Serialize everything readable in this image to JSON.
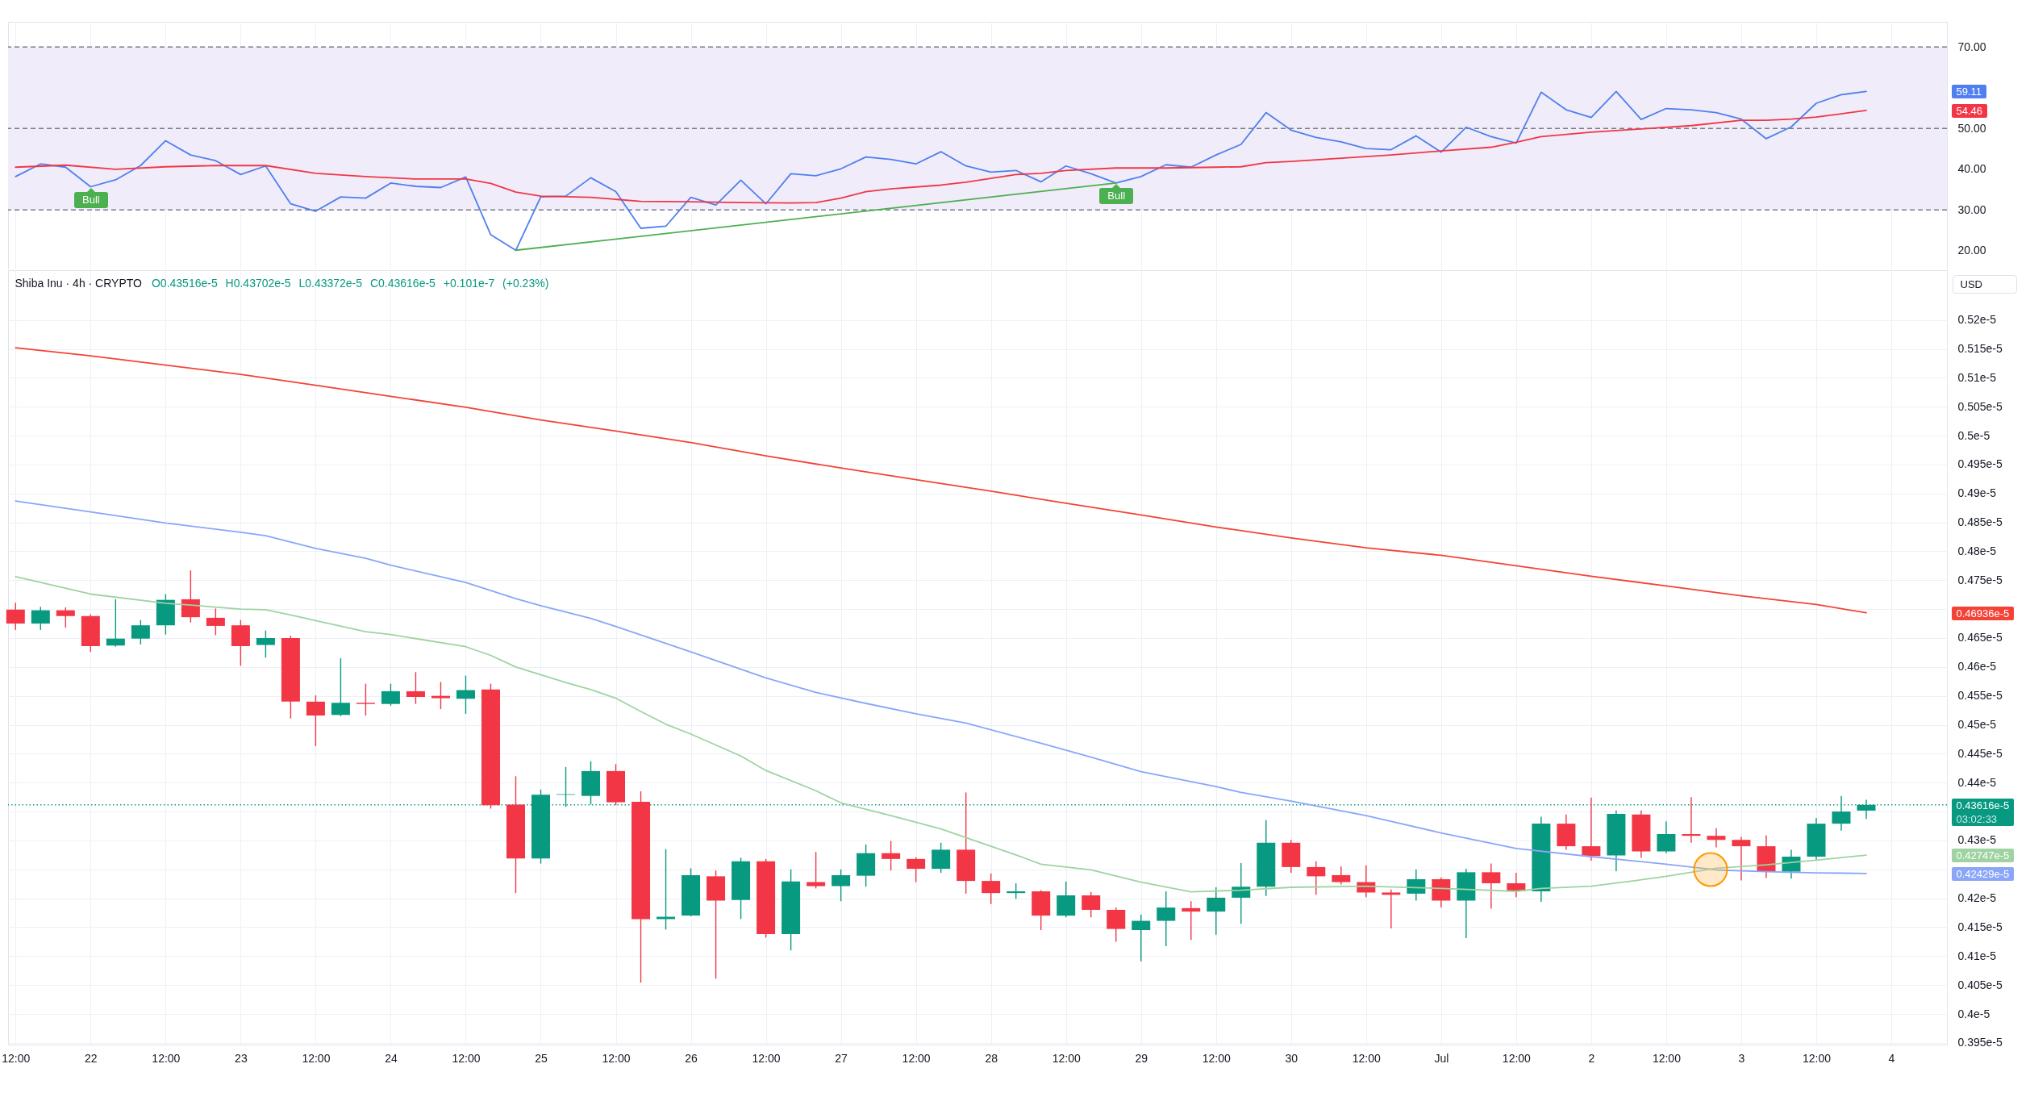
{
  "chart_data": [
    {
      "type": "line",
      "x": [
        "--06-21T12:00",
        "--06-21T16:00",
        "--06-21T20:00",
        "--06-22T00:00",
        "--06-22T04:00",
        "--06-22T08:00",
        "--06-22T12:00",
        "--06-22T16:00",
        "--06-22T20:00",
        "--06-23T00:00",
        "--06-23T04:00",
        "--06-23T08:00",
        "--06-23T12:00",
        "--06-23T16:00",
        "--06-23T20:00",
        "--06-24T00:00",
        "--06-24T04:00",
        "--06-24T08:00",
        "--06-24T12:00",
        "--06-24T16:00",
        "--06-24T20:00",
        "--06-25T00:00",
        "--06-25T04:00",
        "--06-25T08:00",
        "--06-25T12:00",
        "--06-25T16:00",
        "--06-25T20:00",
        "--06-26T00:00",
        "--06-26T04:00",
        "--06-26T08:00",
        "--06-26T12:00",
        "--06-26T16:00",
        "--06-26T20:00",
        "--06-27T00:00",
        "--06-27T04:00",
        "--06-27T08:00",
        "--06-27T12:00",
        "--06-27T16:00",
        "--06-27T20:00",
        "--06-28T00:00",
        "--06-28T04:00",
        "--06-28T08:00",
        "--06-28T12:00",
        "--06-28T16:00",
        "--06-28T20:00",
        "--06-29T00:00",
        "--06-29T04:00",
        "--06-29T08:00",
        "--06-29T12:00",
        "--06-29T16:00",
        "--06-29T20:00",
        "--06-30T00:00",
        "--06-30T04:00",
        "--06-30T08:00",
        "--06-30T12:00",
        "--06-30T16:00",
        "--06-30T20:00",
        "--07-01T00:00",
        "--07-01T04:00",
        "--07-01T08:00",
        "--07-01T12:00",
        "--07-01T16:00",
        "--07-01T20:00",
        "--07-02T00:00",
        "--07-02T04:00",
        "--07-02T08:00",
        "--07-02T12:00",
        "--07-02T16:00",
        "--07-02T20:00",
        "--07-03T00:00",
        "--07-03T04:00",
        "--07-03T08:00",
        "--07-03T12:00",
        "--07-03T16:00",
        "--07-03T20:00"
      ],
      "series": [
        {
          "color": "#4f7ff0",
          "values": [
            38.2,
            41.3,
            40.5,
            35.7,
            37.4,
            40.9,
            47.0,
            43.5,
            42.1,
            38.7,
            40.8,
            31.5,
            29.7,
            33.2,
            32.9,
            36.6,
            35.8,
            35.5,
            38.1,
            23.9,
            20.1,
            33.2,
            33.4,
            37.9,
            34.5,
            25.5,
            26.0,
            33.1,
            31.2,
            37.3,
            31.5,
            38.9,
            38.4,
            40.1,
            43.0,
            42.4,
            41.3,
            44.3,
            40.8,
            39.3,
            39.7,
            36.9,
            40.8,
            38.9,
            36.6,
            38.2,
            41.1,
            40.5,
            43.5,
            46.1,
            53.9,
            49.6,
            47.8,
            46.7,
            45.1,
            44.8,
            48.2,
            44.2,
            50.3,
            48.0,
            46.4,
            58.9,
            54.6,
            52.7,
            59.1,
            52.2,
            54.9,
            54.6,
            53.9,
            52.3,
            47.5,
            50.4,
            56.2,
            58.3,
            59.11
          ]
        },
        {
          "color": "#f23645",
          "x": [
            "--06-21T12:00",
            "--06-21T20:00",
            "--06-22T04:00",
            "--06-22T12:00",
            "--06-22T20:00",
            "--06-23T04:00",
            "--06-23T12:00",
            "--06-23T20:00",
            "--06-24T04:00",
            "--06-24T12:00",
            "--06-24T16:00",
            "--06-24T20:00",
            "--06-25T00:00",
            "--06-25T08:00",
            "--06-25T16:00",
            "--06-26T00:00",
            "--06-26T08:00",
            "--06-26T16:00",
            "--06-26T20:00",
            "--06-27T00:00",
            "--06-27T04:00",
            "--06-27T08:00",
            "--06-27T16:00",
            "--06-27T20:00",
            "--06-28T04:00",
            "--06-28T08:00",
            "--06-28T12:00",
            "--06-28T20:00",
            "--06-29T04:00",
            "--06-29T12:00",
            "--06-29T16:00",
            "--06-29T20:00",
            "--06-30T00:00",
            "--06-30T08:00",
            "--06-30T16:00",
            "--07-01T00:00",
            "--07-01T08:00",
            "--07-01T12:00",
            "--07-01T16:00",
            "--07-02T00:00",
            "--07-02T08:00",
            "--07-02T16:00",
            "--07-03T00:00",
            "--07-03T04:00",
            "--07-03T08:00",
            "--07-03T12:00",
            "--07-03T16:00",
            "--07-03T20:00"
          ],
          "values": [
            40.5,
            41.0,
            40.0,
            40.6,
            40.9,
            40.9,
            39.0,
            38.2,
            37.6,
            37.6,
            36.5,
            34.4,
            33.4,
            33.1,
            32.1,
            32.0,
            31.8,
            31.7,
            31.8,
            32.9,
            34.5,
            35.2,
            36.1,
            36.8,
            38.7,
            39.0,
            39.7,
            40.3,
            40.3,
            40.5,
            40.6,
            41.6,
            41.9,
            42.7,
            43.5,
            44.5,
            45.4,
            46.6,
            48.0,
            49.1,
            49.9,
            50.7,
            52.0,
            52.0,
            52.3,
            52.8,
            53.6,
            54.46
          ]
        },
        {
          "color": "#4caf50",
          "x": [
            "--06-24T20:00",
            "--06-28T20:00"
          ],
          "values": [
            20.1,
            36.6
          ]
        }
      ],
      "xlim": [
        "--06-21T10:48",
        "--07-04T08:54"
      ],
      "xticks": [
        {
          "value": "--06-21T12:00",
          "label": "12:00"
        },
        {
          "value": "--06-22",
          "label": "22"
        },
        {
          "value": "--06-22T12:00",
          "label": "12:00"
        },
        {
          "value": "--06-23",
          "label": "23"
        },
        {
          "value": "--06-23T12:00",
          "label": "12:00"
        },
        {
          "value": "--06-24",
          "label": "24"
        },
        {
          "value": "--06-24T12:00",
          "label": "12:00"
        },
        {
          "value": "--06-25",
          "label": "25"
        },
        {
          "value": "--06-25T12:00",
          "label": "12:00"
        },
        {
          "value": "--06-26",
          "label": "26"
        },
        {
          "value": "--06-26T12:00",
          "label": "12:00"
        },
        {
          "value": "--06-27",
          "label": "27"
        },
        {
          "value": "--06-27T12:00",
          "label": "12:00"
        },
        {
          "value": "--06-28",
          "label": "28"
        },
        {
          "value": "--06-28T12:00",
          "label": "12:00"
        },
        {
          "value": "--06-29",
          "label": "29"
        },
        {
          "value": "--06-29T12:00",
          "label": "12:00"
        },
        {
          "value": "--06-30",
          "label": "30"
        },
        {
          "value": "--06-30T12:00",
          "label": "12:00"
        },
        {
          "value": "--07-01",
          "label": "Jul"
        },
        {
          "value": "--07-01T12:00",
          "label": "12:00"
        },
        {
          "value": "--07-02",
          "label": "2"
        },
        {
          "value": "--07-02T12:00",
          "label": "12:00"
        },
        {
          "value": "--07-03",
          "label": "3"
        },
        {
          "value": "--07-03T12:00",
          "label": "12:00"
        },
        {
          "value": "--07-04",
          "label": "4"
        }
      ],
      "ylim": [
        15.4,
        76.2
      ],
      "yticks": [
        {
          "value": 20,
          "label": "20.00"
        },
        {
          "value": 30,
          "label": "30.00"
        },
        {
          "value": 40,
          "label": "40.00"
        },
        {
          "value": 50,
          "label": "50.00"
        },
        {
          "value": 70,
          "label": "70.00"
        }
      ],
      "bands": [
        {
          "axis": "y",
          "from": 30,
          "to": 70,
          "color": "#f0ecf9"
        }
      ],
      "ref_lines": [
        {
          "axis": "y",
          "value": 30,
          "color": "#787b86",
          "line_style": "dashed"
        },
        {
          "axis": "y",
          "value": 50,
          "color": "#787b86",
          "line_style": "dashed"
        },
        {
          "axis": "y",
          "value": 70,
          "color": "#787b86",
          "line_style": "dashed"
        }
      ],
      "annotations": [
        {
          "text": "Bull",
          "x": "--06-22T00:00",
          "y": 35.7
        },
        {
          "text": "Bull",
          "x": "--06-28T20:00",
          "y": 36.6
        },
        "59.11",
        "54.46"
      ],
      "grid": "x",
      "tick_labels": "y"
    },
    {
      "type": "candlestick",
      "title": "Shiba Inu · 4h · CRYPTO",
      "subtitle": "O0.43516e-5 H0.43702e-5 L0.43372e-5 C0.43616e-5 +0.101e-7 (+0.23%)",
      "ylabel": "USD",
      "x": [
        "--06-21T12:00",
        "--06-21T16:00",
        "--06-21T20:00",
        "--06-22T00:00",
        "--06-22T04:00",
        "--06-22T08:00",
        "--06-22T12:00",
        "--06-22T16:00",
        "--06-22T20:00",
        "--06-23T00:00",
        "--06-23T04:00",
        "--06-23T08:00",
        "--06-23T12:00",
        "--06-23T16:00",
        "--06-23T20:00",
        "--06-24T00:00",
        "--06-24T04:00",
        "--06-24T08:00",
        "--06-24T12:00",
        "--06-24T16:00",
        "--06-24T20:00",
        "--06-25T00:00",
        "--06-25T04:00",
        "--06-25T08:00",
        "--06-25T12:00",
        "--06-25T16:00",
        "--06-25T20:00",
        "--06-26T00:00",
        "--06-26T04:00",
        "--06-26T08:00",
        "--06-26T12:00",
        "--06-26T16:00",
        "--06-26T20:00",
        "--06-27T00:00",
        "--06-27T04:00",
        "--06-27T08:00",
        "--06-27T12:00",
        "--06-27T16:00",
        "--06-27T20:00",
        "--06-28T00:00",
        "--06-28T04:00",
        "--06-28T08:00",
        "--06-28T12:00",
        "--06-28T16:00",
        "--06-28T20:00",
        "--06-29T00:00",
        "--06-29T04:00",
        "--06-29T08:00",
        "--06-29T12:00",
        "--06-29T16:00",
        "--06-29T20:00",
        "--06-30T00:00",
        "--06-30T04:00",
        "--06-30T08:00",
        "--06-30T12:00",
        "--06-30T16:00",
        "--06-30T20:00",
        "--07-01T00:00",
        "--07-01T04:00",
        "--07-01T08:00",
        "--07-01T12:00",
        "--07-01T16:00",
        "--07-01T20:00",
        "--07-02T00:00",
        "--07-02T04:00",
        "--07-02T08:00",
        "--07-02T12:00",
        "--07-02T16:00",
        "--07-02T20:00",
        "--07-03T00:00",
        "--07-03T04:00",
        "--07-03T08:00",
        "--07-03T12:00",
        "--07-03T16:00",
        "--07-03T20:00"
      ],
      "ohlc": [
        [
          4.699e-06,
          4.711e-06,
          4.664e-06,
          4.675e-06
        ],
        [
          4.675e-06,
          4.704e-06,
          4.664e-06,
          4.698e-06
        ],
        [
          4.698e-06,
          4.703e-06,
          4.668e-06,
          4.688e-06
        ],
        [
          4.688e-06,
          4.691e-06,
          4.626e-06,
          4.636e-06
        ],
        [
          4.637e-06,
          4.717e-06,
          4.635e-06,
          4.649e-06
        ],
        [
          4.649e-06,
          4.681e-06,
          4.639e-06,
          4.672e-06
        ],
        [
          4.672e-06,
          4.726e-06,
          4.656e-06,
          4.716e-06
        ],
        [
          4.717e-06,
          4.767e-06,
          4.677e-06,
          4.686e-06
        ],
        [
          4.685e-06,
          4.701e-06,
          4.655e-06,
          4.671e-06
        ],
        [
          4.672e-06,
          4.681e-06,
          4.602e-06,
          4.636e-06
        ],
        [
          4.638e-06,
          4.663e-06,
          4.616e-06,
          4.65e-06
        ],
        [
          4.65e-06,
          4.654e-06,
          4.511e-06,
          4.54e-06
        ],
        [
          4.54e-06,
          4.551e-06,
          4.463e-06,
          4.516e-06
        ],
        [
          4.517e-06,
          4.615e-06,
          4.515e-06,
          4.538e-06
        ],
        [
          4.538e-06,
          4.571e-06,
          4.516e-06,
          4.536e-06
        ],
        [
          4.536e-06,
          4.571e-06,
          4.533e-06,
          4.558e-06
        ],
        [
          4.558e-06,
          4.591e-06,
          4.536e-06,
          4.548e-06
        ],
        [
          4.55e-06,
          4.574e-06,
          4.527e-06,
          4.546e-06
        ],
        [
          4.545e-06,
          4.585e-06,
          4.519e-06,
          4.56e-06
        ],
        [
          4.561e-06,
          4.571e-06,
          4.355e-06,
          4.361e-06
        ],
        [
          4.362e-06,
          4.411e-06,
          4.209e-06,
          4.269e-06
        ],
        [
          4.269e-06,
          4.388e-06,
          4.26e-06,
          4.379e-06
        ],
        [
          4.379e-06,
          4.427e-06,
          4.358e-06,
          4.38e-06
        ],
        [
          4.377e-06,
          4.437e-06,
          4.362e-06,
          4.42e-06
        ],
        [
          4.42e-06,
          4.432e-06,
          4.361e-06,
          4.366e-06
        ],
        [
          4.367e-06,
          4.385e-06,
          4.054e-06,
          4.164e-06
        ],
        [
          4.164e-06,
          4.285e-06,
          4.146e-06,
          4.168e-06
        ],
        [
          4.17e-06,
          4.252e-06,
          4.169e-06,
          4.24e-06
        ],
        [
          4.238e-06,
          4.248e-06,
          4.061e-06,
          4.196e-06
        ],
        [
          4.197e-06,
          4.27e-06,
          4.164e-06,
          4.264e-06
        ],
        [
          4.264e-06,
          4.268e-06,
          4.132e-06,
          4.138e-06
        ],
        [
          4.138e-06,
          4.25e-06,
          4.11e-06,
          4.229e-06
        ],
        [
          4.228e-06,
          4.28e-06,
          4.217e-06,
          4.221e-06
        ],
        [
          4.221e-06,
          4.25e-06,
          4.195e-06,
          4.24e-06
        ],
        [
          4.239e-06,
          4.293e-06,
          4.22e-06,
          4.278e-06
        ],
        [
          4.278e-06,
          4.299e-06,
          4.248e-06,
          4.268e-06
        ],
        [
          4.268e-06,
          4.271e-06,
          4.228e-06,
          4.251e-06
        ],
        [
          4.251e-06,
          4.296e-06,
          4.244e-06,
          4.284e-06
        ],
        [
          4.284e-06,
          4.383e-06,
          4.208e-06,
          4.23e-06
        ],
        [
          4.23e-06,
          4.243e-06,
          4.19e-06,
          4.209e-06
        ],
        [
          4.209e-06,
          4.226e-06,
          4.199e-06,
          4.212e-06
        ],
        [
          4.212e-06,
          4.214e-06,
          4.145e-06,
          4.17e-06
        ],
        [
          4.17e-06,
          4.229e-06,
          4.167e-06,
          4.205e-06
        ],
        [
          4.205e-06,
          4.211e-06,
          4.167e-06,
          4.18e-06
        ],
        [
          4.18e-06,
          4.184e-06,
          4.125e-06,
          4.147e-06
        ],
        [
          4.145e-06,
          4.172e-06,
          4.091e-06,
          4.161e-06
        ],
        [
          4.161e-06,
          4.212e-06,
          4.117e-06,
          4.184e-06
        ],
        [
          4.183e-06,
          4.195e-06,
          4.128e-06,
          4.177e-06
        ],
        [
          4.177e-06,
          4.219e-06,
          4.137e-06,
          4.201e-06
        ],
        [
          4.201e-06,
          4.261e-06,
          4.156e-06,
          4.22e-06
        ],
        [
          4.22e-06,
          4.335e-06,
          4.204e-06,
          4.296e-06
        ],
        [
          4.296e-06,
          4.301e-06,
          4.244e-06,
          4.254e-06
        ],
        [
          4.254e-06,
          4.264e-06,
          4.206e-06,
          4.238e-06
        ],
        [
          4.24e-06,
          4.255e-06,
          4.224e-06,
          4.228e-06
        ],
        [
          4.228e-06,
          4.257e-06,
          4.202e-06,
          4.21e-06
        ],
        [
          4.21e-06,
          4.215e-06,
          4.148e-06,
          4.206e-06
        ],
        [
          4.208e-06,
          4.25e-06,
          4.196e-06,
          4.233e-06
        ],
        [
          4.233e-06,
          4.236e-06,
          4.184e-06,
          4.196e-06
        ],
        [
          4.196e-06,
          4.251e-06,
          4.131e-06,
          4.245e-06
        ],
        [
          4.245e-06,
          4.26e-06,
          4.182e-06,
          4.226e-06
        ],
        [
          4.226e-06,
          4.244e-06,
          4.202e-06,
          4.212e-06
        ],
        [
          4.212e-06,
          4.341e-06,
          4.194e-06,
          4.329e-06
        ],
        [
          4.329e-06,
          4.345e-06,
          4.284e-06,
          4.29e-06
        ],
        [
          4.29e-06,
          4.374e-06,
          4.265e-06,
          4.273e-06
        ],
        [
          4.274e-06,
          4.352e-06,
          4.247e-06,
          4.346e-06
        ],
        [
          4.345e-06,
          4.352e-06,
          4.27e-06,
          4.281e-06
        ],
        [
          4.281e-06,
          4.333e-06,
          4.278e-06,
          4.311e-06
        ],
        [
          4.311e-06,
          4.375e-06,
          4.296e-06,
          4.308e-06
        ],
        [
          4.308e-06,
          4.321e-06,
          4.288e-06,
          4.301e-06
        ],
        [
          4.301e-06,
          4.306e-06,
          4.231e-06,
          4.29e-06
        ],
        [
          4.29e-06,
          4.309e-06,
          4.235e-06,
          4.246e-06
        ],
        [
          4.246e-06,
          4.284e-06,
          4.234e-06,
          4.272e-06
        ],
        [
          4.272e-06,
          4.339e-06,
          4.265e-06,
          4.329e-06
        ],
        [
          4.329e-06,
          4.377e-06,
          4.317e-06,
          4.35e-06
        ],
        [
          4.3516e-06,
          4.3702e-06,
          4.3372e-06,
          4.3616e-06
        ]
      ],
      "colors": [
        "#f23645",
        "#089981",
        "#f23645",
        "#f23645",
        "#089981",
        "#089981",
        "#089981",
        "#f23645",
        "#f23645",
        "#f23645",
        "#089981",
        "#f23645",
        "#f23645",
        "#089981",
        "#f23645",
        "#089981",
        "#f23645",
        "#f23645",
        "#089981",
        "#f23645",
        "#f23645",
        "#089981",
        "#089981",
        "#089981",
        "#f23645",
        "#f23645",
        "#089981",
        "#089981",
        "#f23645",
        "#089981",
        "#f23645",
        "#089981",
        "#f23645",
        "#089981",
        "#089981",
        "#f23645",
        "#f23645",
        "#089981",
        "#f23645",
        "#f23645",
        "#089981",
        "#f23645",
        "#089981",
        "#f23645",
        "#f23645",
        "#089981",
        "#089981",
        "#f23645",
        "#089981",
        "#089981",
        "#089981",
        "#f23645",
        "#f23645",
        "#f23645",
        "#f23645",
        "#f23645",
        "#089981",
        "#f23645",
        "#089981",
        "#f23645",
        "#f23645",
        "#089981",
        "#f23645",
        "#f23645",
        "#089981",
        "#f23645",
        "#089981",
        "#f23645",
        "#f23645",
        "#f23645",
        "#f23645",
        "#089981",
        "#089981",
        "#089981",
        "#089981"
      ],
      "series": [
        {
          "type": "line",
          "color": "#f44336",
          "x": [
            "--06-21T12:00",
            "--06-22T00:00",
            "--06-22T12:00",
            "--06-23T00:00",
            "--06-23T12:00",
            "--06-24T00:00",
            "--06-24T12:00",
            "--06-25T00:00",
            "--06-25T12:00",
            "--06-26T00:00",
            "--06-26T12:00",
            "--06-27T00:00",
            "--06-27T12:00",
            "--06-28T00:00",
            "--06-28T12:00",
            "--06-29T00:00",
            "--06-29T12:00",
            "--06-30T00:00",
            "--06-30T12:00",
            "--07-01T00:00",
            "--07-01T12:00",
            "--07-02T00:00",
            "--07-02T12:00",
            "--07-03T00:00",
            "--07-03T12:00",
            "--07-03T20:00"
          ],
          "values": [
            5.152e-06,
            5.138e-06,
            5.122e-06,
            5.106e-06,
            5.087e-06,
            5.068e-06,
            5.049e-06,
            5.027e-06,
            5.008e-06,
            4.988e-06,
            4.965e-06,
            4.944e-06,
            4.924e-06,
            4.904e-06,
            4.883e-06,
            4.863e-06,
            4.842e-06,
            4.823e-06,
            4.806e-06,
            4.793e-06,
            4.775e-06,
            4.757e-06,
            4.74e-06,
            4.723e-06,
            4.708e-06,
            4.6936e-06
          ]
        },
        {
          "type": "line",
          "color": "#8aa6f8",
          "x": [
            "--06-21T12:00",
            "--06-22T00:00",
            "--06-22T12:00",
            "--06-23T00:00",
            "--06-23T04:00",
            "--06-23T12:00",
            "--06-23T20:00",
            "--06-24T00:00",
            "--06-24T12:00",
            "--06-24T20:00",
            "--06-25T00:00",
            "--06-25T08:00",
            "--06-25T12:00",
            "--06-26T00:00",
            "--06-26T12:00",
            "--06-26T20:00",
            "--06-27T04:00",
            "--06-27T12:00",
            "--06-27T20:00",
            "--06-28T08:00",
            "--06-28T16:00",
            "--06-29T00:00",
            "--06-29T12:00",
            "--06-29T16:00",
            "--06-30T00:00",
            "--06-30T12:00",
            "--07-01T00:00",
            "--07-01T12:00",
            "--07-02T00:00",
            "--07-02T12:00",
            "--07-02T20:00",
            "--07-03T04:00",
            "--07-03T12:00",
            "--07-03T20:00"
          ],
          "values": [
            4.887e-06,
            4.868e-06,
            4.849e-06,
            4.833e-06,
            4.827e-06,
            4.805e-06,
            4.788e-06,
            4.776e-06,
            4.746e-06,
            4.718e-06,
            4.706e-06,
            4.684e-06,
            4.67e-06,
            4.626e-06,
            4.581e-06,
            4.556e-06,
            4.537e-06,
            4.519e-06,
            4.503e-06,
            4.468e-06,
            4.444e-06,
            4.419e-06,
            4.393e-06,
            4.383e-06,
            4.368e-06,
            4.343e-06,
            4.313e-06,
            4.286e-06,
            4.272e-06,
            4.259e-06,
            4.249e-06,
            4.246e-06,
            4.244e-06,
            4.2429e-06
          ]
        },
        {
          "type": "line",
          "color": "#9fd3a1",
          "x": [
            "--06-21T12:00",
            "--06-22T00:00",
            "--06-22T12:00",
            "--06-22T16:00",
            "--06-23T00:00",
            "--06-23T04:00",
            "--06-23T08:00",
            "--06-23T12:00",
            "--06-23T20:00",
            "--06-24T00:00",
            "--06-24T12:00",
            "--06-24T16:00",
            "--06-24T20:00",
            "--06-25T04:00",
            "--06-25T08:00",
            "--06-25T12:00",
            "--06-25T16:00",
            "--06-25T20:00",
            "--06-26T00:00",
            "--06-26T08:00",
            "--06-26T12:00",
            "--06-26T20:00",
            "--06-27T00:00",
            "--06-27T08:00",
            "--06-27T16:00",
            "--06-28T00:00",
            "--06-28T04:00",
            "--06-28T08:00",
            "--06-28T16:00",
            "--06-29T00:00",
            "--06-29T08:00",
            "--06-29T16:00",
            "--06-30T00:00",
            "--06-30T12:00",
            "--07-01T00:00",
            "--07-01T12:00",
            "--07-01T16:00",
            "--07-02T00:00",
            "--07-02T08:00",
            "--07-02T12:00",
            "--07-02T20:00",
            "--07-03T04:00",
            "--07-03T12:00",
            "--07-03T20:00"
          ],
          "values": [
            4.756e-06,
            4.726e-06,
            4.71e-06,
            4.707e-06,
            4.7e-06,
            4.699e-06,
            4.69e-06,
            4.68e-06,
            4.661e-06,
            4.656e-06,
            4.635e-06,
            4.62e-06,
            4.6e-06,
            4.573e-06,
            4.561e-06,
            4.546e-06,
            4.523e-06,
            4.501e-06,
            4.484e-06,
            4.446e-06,
            4.421e-06,
            4.386e-06,
            4.365e-06,
            4.343e-06,
            4.32e-06,
            4.29e-06,
            4.275e-06,
            4.259e-06,
            4.249e-06,
            4.228e-06,
            4.211e-06,
            4.214e-06,
            4.219e-06,
            4.221e-06,
            4.217e-06,
            4.212e-06,
            4.217e-06,
            4.221e-06,
            4.232e-06,
            4.238e-06,
            4.252e-06,
            4.258e-06,
            4.266e-06,
            4.2747e-06
          ]
        }
      ],
      "xlim": [
        "--06-21T10:48",
        "--07-04T08:54"
      ],
      "xticks": [
        {
          "value": "--06-21T12:00",
          "label": "12:00"
        },
        {
          "value": "--06-22",
          "label": "22"
        },
        {
          "value": "--06-22T12:00",
          "label": "12:00"
        },
        {
          "value": "--06-23",
          "label": "23"
        },
        {
          "value": "--06-23T12:00",
          "label": "12:00"
        },
        {
          "value": "--06-24",
          "label": "24"
        },
        {
          "value": "--06-24T12:00",
          "label": "12:00"
        },
        {
          "value": "--06-25",
          "label": "25"
        },
        {
          "value": "--06-25T12:00",
          "label": "12:00"
        },
        {
          "value": "--06-26",
          "label": "26"
        },
        {
          "value": "--06-26T12:00",
          "label": "12:00"
        },
        {
          "value": "--06-27",
          "label": "27"
        },
        {
          "value": "--06-27T12:00",
          "label": "12:00"
        },
        {
          "value": "--06-28",
          "label": "28"
        },
        {
          "value": "--06-28T12:00",
          "label": "12:00"
        },
        {
          "value": "--06-29",
          "label": "29"
        },
        {
          "value": "--06-29T12:00",
          "label": "12:00"
        },
        {
          "value": "--06-30",
          "label": "30"
        },
        {
          "value": "--06-30T12:00",
          "label": "12:00"
        },
        {
          "value": "--07-01",
          "label": "Jul"
        },
        {
          "value": "--07-01T12:00",
          "label": "12:00"
        },
        {
          "value": "--07-02",
          "label": "2"
        },
        {
          "value": "--07-02T12:00",
          "label": "12:00"
        },
        {
          "value": "--07-03",
          "label": "3"
        },
        {
          "value": "--07-03T12:00",
          "label": "12:00"
        },
        {
          "value": "--07-04",
          "label": "4"
        }
      ],
      "ylim": [
        3.947e-06,
        5.286e-06
      ],
      "yticks": [
        {
          "value": 3.95e-06,
          "label": "0.395e-5"
        },
        {
          "value": 4e-06,
          "label": "0.4e-5"
        },
        {
          "value": 4.05e-06,
          "label": "0.405e-5"
        },
        {
          "value": 4.1e-06,
          "label": "0.41e-5"
        },
        {
          "value": 4.15e-06,
          "label": "0.415e-5"
        },
        {
          "value": 4.2e-06,
          "label": "0.42e-5"
        },
        {
          "value": 4.25e-06,
          "label": null
        },
        {
          "value": 4.3e-06,
          "label": "0.43e-5"
        },
        {
          "value": 4.35e-06,
          "label": null
        },
        {
          "value": 4.4e-06,
          "label": "0.44e-5"
        },
        {
          "value": 4.45e-06,
          "label": "0.445e-5"
        },
        {
          "value": 4.5e-06,
          "label": "0.45e-5"
        },
        {
          "value": 4.55e-06,
          "label": "0.455e-5"
        },
        {
          "value": 4.6e-06,
          "label": "0.46e-5"
        },
        {
          "value": 4.65e-06,
          "label": "0.465e-5"
        },
        {
          "value": 4.7e-06,
          "label": null
        },
        {
          "value": 4.75e-06,
          "label": "0.475e-5"
        },
        {
          "value": 4.8e-06,
          "label": "0.48e-5"
        },
        {
          "value": 4.85e-06,
          "label": "0.485e-5"
        },
        {
          "value": 4.9e-06,
          "label": "0.49e-5"
        },
        {
          "value": 4.95e-06,
          "label": "0.495e-5"
        },
        {
          "value": 5e-06,
          "label": "0.5e-5"
        },
        {
          "value": 5.05e-06,
          "label": "0.505e-5"
        },
        {
          "value": 5.1e-06,
          "label": "0.51e-5"
        },
        {
          "value": 5.15e-06,
          "label": "0.515e-5"
        },
        {
          "value": 5.2e-06,
          "label": "0.52e-5"
        }
      ],
      "ref_lines": [
        {
          "axis": "y",
          "value": 4.3616e-06,
          "label": "0.43616e-5",
          "color": "#089981",
          "line_style": "dotted"
        }
      ],
      "annotations": [
        "0.46936e-5",
        "0.42429e-5",
        "0.42747e-5",
        "03:02:33"
      ],
      "grid": true
    }
  ]
}
